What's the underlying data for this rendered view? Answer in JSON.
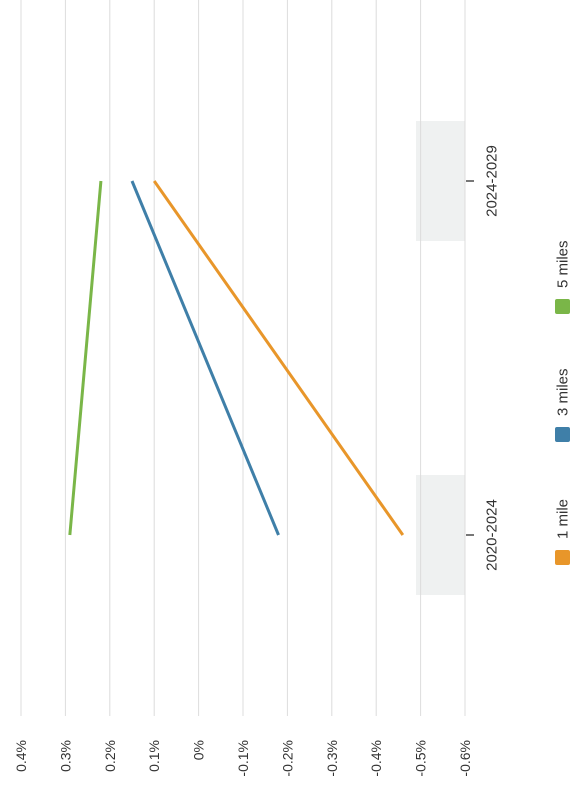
{
  "chart_data": {
    "type": "line",
    "orientation": "rotated-90-ccw",
    "categories": [
      "2020-2024",
      "2024-2029"
    ],
    "series": [
      {
        "name": "1 mile",
        "color": "#e8962a",
        "values": [
          -0.46,
          0.1
        ]
      },
      {
        "name": "3 miles",
        "color": "#3f7fa8",
        "values": [
          -0.18,
          0.15
        ]
      },
      {
        "name": "5 miles",
        "color": "#7ab648",
        "values": [
          0.29,
          0.22
        ]
      }
    ],
    "ylim": [
      -0.6,
      0.4
    ],
    "y_ticks": [
      {
        "value": 0.4,
        "label": "0.4%"
      },
      {
        "value": 0.3,
        "label": "0.3%"
      },
      {
        "value": 0.2,
        "label": "0.2%"
      },
      {
        "value": 0.1,
        "label": "0.1%"
      },
      {
        "value": 0.0,
        "label": "0%"
      },
      {
        "value": -0.1,
        "label": "-0.1%"
      },
      {
        "value": -0.2,
        "label": "-0.2%"
      },
      {
        "value": -0.3,
        "label": "-0.3%"
      },
      {
        "value": -0.4,
        "label": "-0.4%"
      },
      {
        "value": -0.5,
        "label": "-0.5%"
      },
      {
        "value": -0.6,
        "label": "-0.6%"
      }
    ],
    "grid": true,
    "category_bands": true,
    "legend_position": "bottom",
    "title": "",
    "xlabel": "",
    "ylabel": ""
  }
}
